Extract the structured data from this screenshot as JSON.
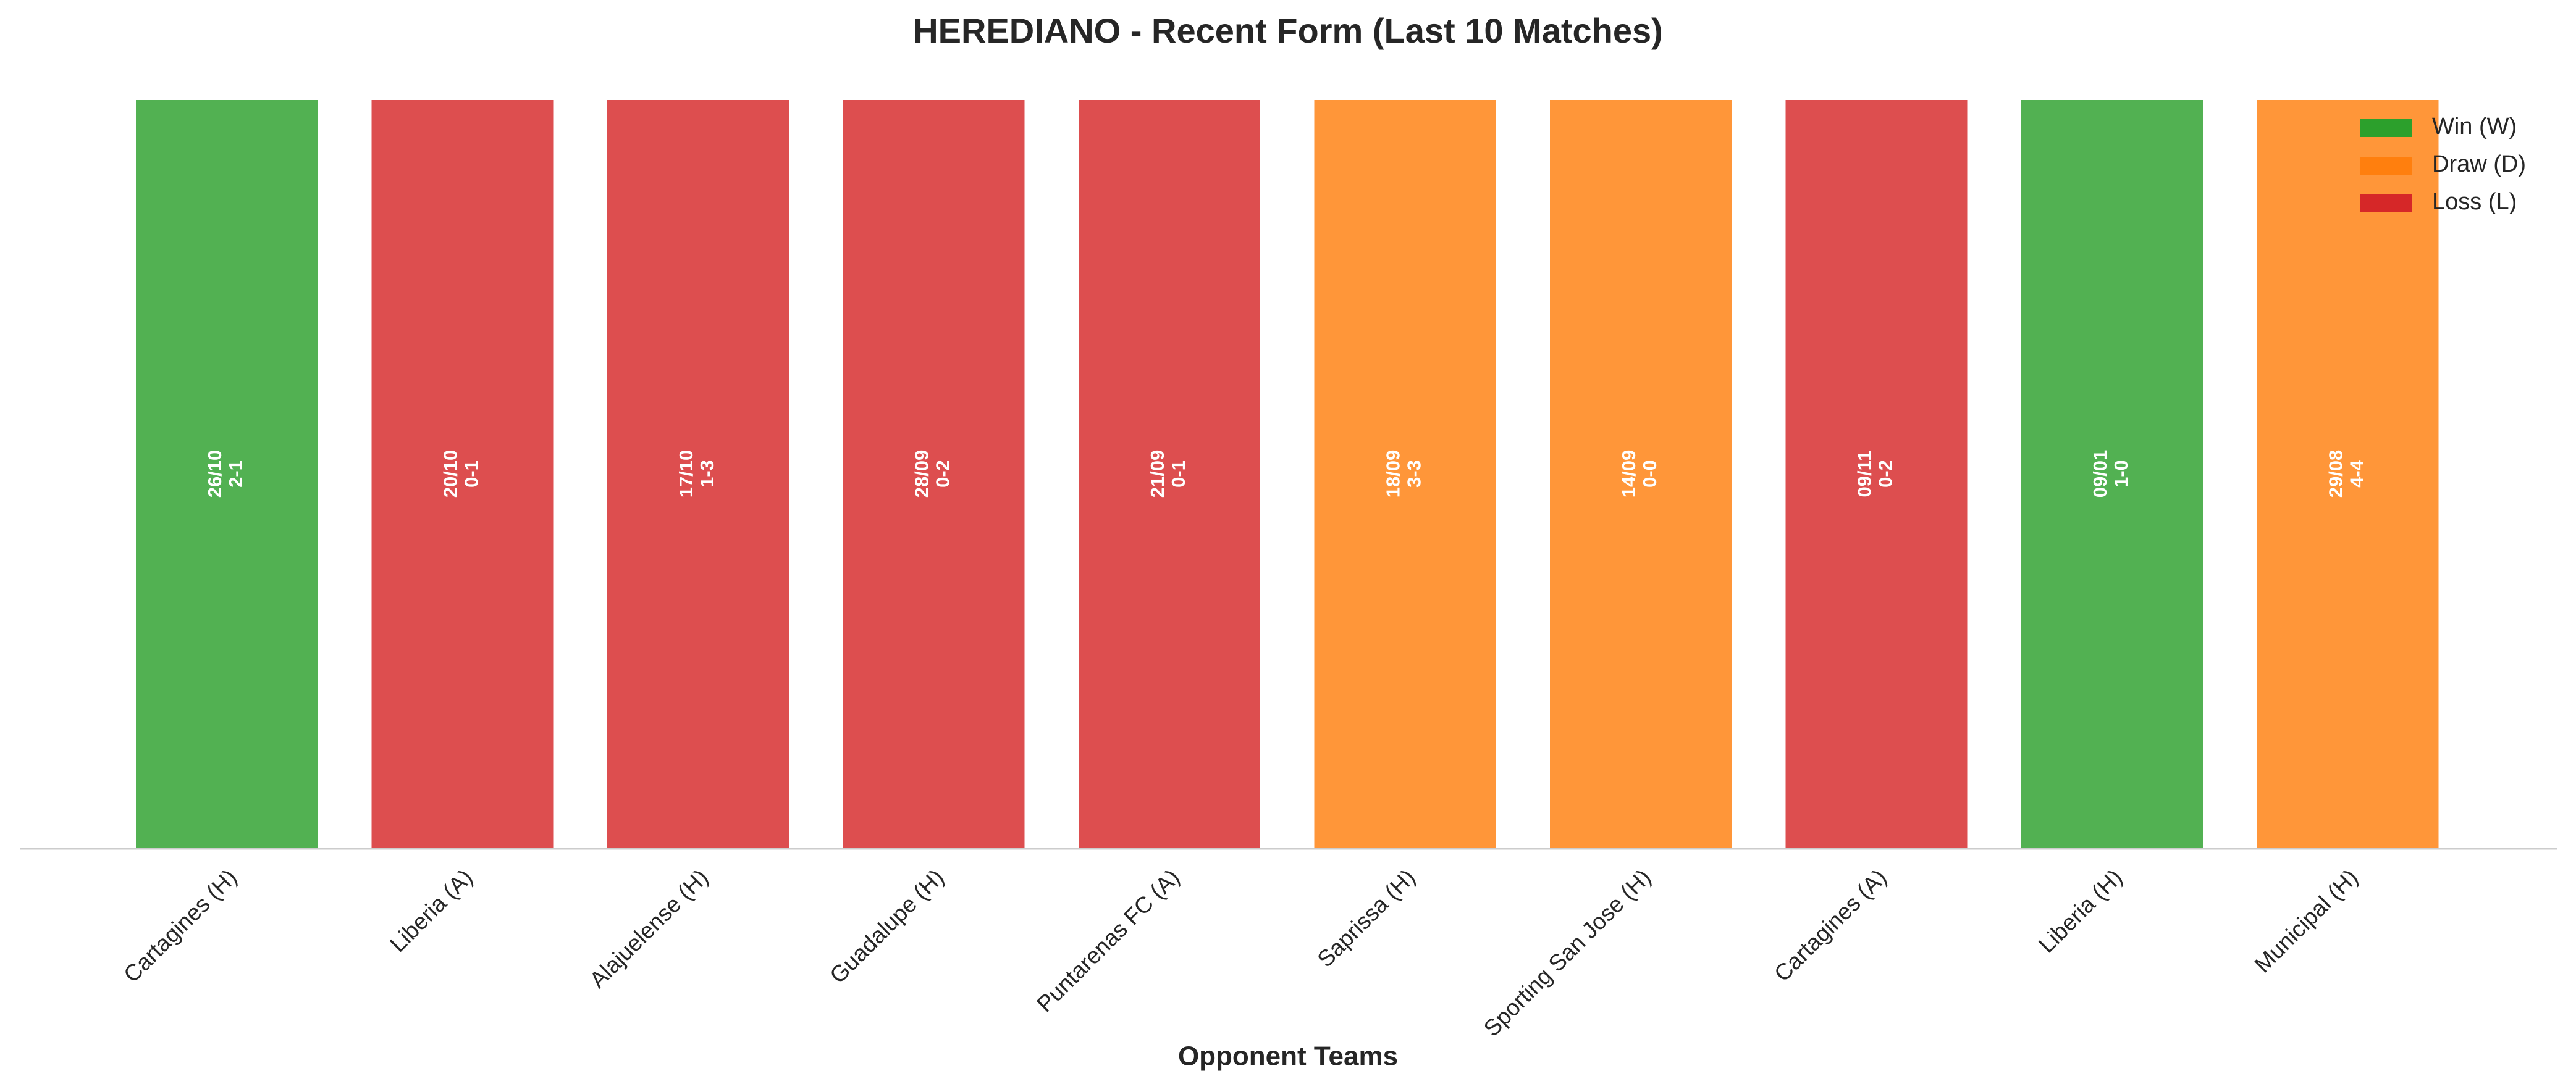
{
  "chart_data": {
    "type": "bar",
    "title": "HEREDIANO - Recent Form (Last 10 Matches)",
    "x_label": "Opponent Teams",
    "categories": [
      "Cartagines (H)",
      "Liberia (A)",
      "Alajuelense (H)",
      "Guadalupe (H)",
      "Puntarenas FC (A)",
      "Saprissa (H)",
      "Sporting San Jose (H)",
      "Cartagines (A)",
      "Liberia (H)",
      "Municipal (H)"
    ],
    "values": [
      1,
      1,
      1,
      1,
      1,
      1,
      1,
      1,
      1,
      1
    ],
    "dates": [
      "26/10",
      "20/10",
      "17/10",
      "28/09",
      "21/09",
      "18/09",
      "14/09",
      "09/11",
      "09/01",
      "29/08"
    ],
    "scores": [
      "2-1",
      "0-1",
      "1-3",
      "0-2",
      "0-1",
      "3-3",
      "0-0",
      "0-2",
      "1-0",
      "4-4"
    ],
    "colors": [
      "#2ca02c",
      "#d62728",
      "#d62728",
      "#d62728",
      "#d62728",
      "#ff7f0e",
      "#ff7f0e",
      "#d62728",
      "#2ca02c",
      "#ff7f0e"
    ],
    "ylim": [
      0,
      1
    ],
    "legend": [
      {
        "name": "Win (W)",
        "color": "#2ca02c"
      },
      {
        "name": "Draw (D)",
        "color": "#ff7f0e"
      },
      {
        "name": "Loss (L)",
        "color": "#d62728"
      }
    ],
    "legend_position": "upper right"
  }
}
